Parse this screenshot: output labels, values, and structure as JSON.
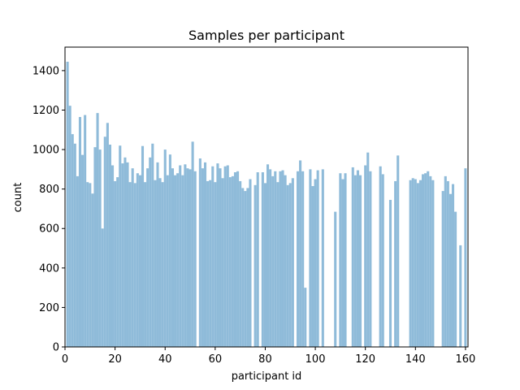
{
  "chart_data": {
    "type": "bar",
    "title": "Samples per participant",
    "x_label": "participant id",
    "y_label": "count",
    "color": "#8fbbd9",
    "x": [
      1,
      2,
      3,
      4,
      5,
      6,
      7,
      8,
      9,
      10,
      11,
      12,
      13,
      14,
      15,
      16,
      17,
      18,
      19,
      20,
      21,
      22,
      23,
      24,
      25,
      26,
      27,
      28,
      29,
      30,
      31,
      32,
      33,
      34,
      35,
      36,
      37,
      38,
      39,
      40,
      41,
      42,
      43,
      44,
      45,
      46,
      47,
      48,
      49,
      50,
      51,
      52,
      53,
      54,
      55,
      56,
      57,
      58,
      59,
      60,
      61,
      62,
      63,
      64,
      65,
      66,
      67,
      68,
      69,
      70,
      71,
      72,
      73,
      74,
      75,
      76,
      77,
      78,
      79,
      80,
      81,
      82,
      83,
      84,
      85,
      86,
      87,
      88,
      89,
      90,
      91,
      92,
      93,
      94,
      95,
      96,
      97,
      98,
      99,
      100,
      101,
      102,
      103,
      104,
      105,
      106,
      107,
      108,
      109,
      110,
      111,
      112,
      113,
      114,
      115,
      116,
      117,
      118,
      119,
      120,
      121,
      122,
      123,
      124,
      125,
      126,
      127,
      128,
      129,
      130,
      131,
      132,
      133,
      134,
      135,
      136,
      137,
      138,
      139,
      140,
      141,
      142,
      143,
      144,
      145,
      146,
      147,
      148,
      149,
      150,
      151,
      152,
      153,
      154,
      155,
      156,
      157,
      158,
      159,
      160
    ],
    "values": [
      1445,
      1222,
      1078,
      1030,
      865,
      1165,
      973,
      1175,
      835,
      830,
      777,
      1012,
      1185,
      1000,
      600,
      1065,
      1135,
      1025,
      920,
      840,
      860,
      1020,
      930,
      960,
      935,
      835,
      905,
      830,
      880,
      870,
      1018,
      835,
      905,
      960,
      1030,
      845,
      935,
      855,
      835,
      1000,
      870,
      975,
      905,
      870,
      880,
      920,
      870,
      925,
      905,
      900,
      1040,
      890,
      null,
      955,
      905,
      935,
      840,
      845,
      915,
      835,
      930,
      905,
      855,
      915,
      920,
      860,
      865,
      885,
      890,
      840,
      805,
      790,
      805,
      850,
      null,
      820,
      885,
      null,
      885,
      830,
      925,
      900,
      865,
      890,
      835,
      890,
      895,
      870,
      820,
      830,
      855,
      null,
      890,
      945,
      890,
      300,
      null,
      900,
      815,
      850,
      895,
      null,
      900,
      null,
      null,
      null,
      null,
      685,
      null,
      880,
      850,
      880,
      null,
      null,
      910,
      870,
      895,
      870,
      null,
      920,
      985,
      890,
      null,
      null,
      null,
      915,
      875,
      null,
      null,
      745,
      null,
      840,
      970,
      null,
      null,
      null,
      null,
      845,
      855,
      850,
      830,
      845,
      875,
      880,
      890,
      865,
      845,
      null,
      null,
      null,
      790,
      865,
      840,
      775,
      825,
      685,
      null,
      515,
      null,
      905
    ],
    "xlim": [
      0,
      161
    ],
    "ylim": [
      0,
      1519
    ],
    "xticks": [
      0,
      20,
      40,
      60,
      80,
      100,
      120,
      140,
      160
    ],
    "yticks": [
      0,
      200,
      400,
      600,
      800,
      1000,
      1200,
      1400
    ]
  }
}
